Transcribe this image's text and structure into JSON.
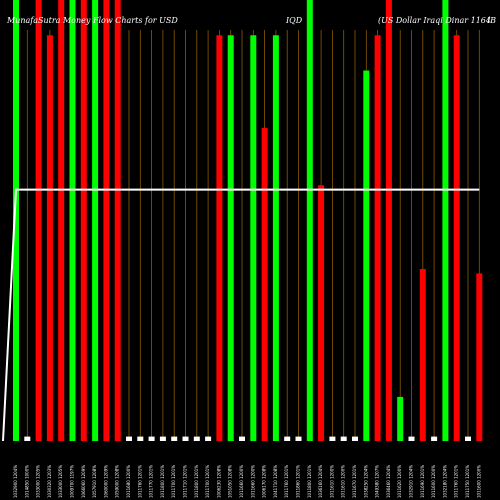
{
  "chart_data": {
    "type": "bar",
    "title_parts": [
      "MunafaSutra Money Flow Charts for USD",
      "IQD",
      "(US Dollar Iraqi Dinar 1164",
      "IB"
    ],
    "ylim": [
      0,
      100
    ],
    "grid": "vertical lines",
    "colors": {
      "background": "#000000",
      "up": "#00ff00",
      "down": "#ff0000",
      "grid": "#8b5a00",
      "line": "#ffffff",
      "neutral": "#ffffff"
    },
    "categories": [
      "1032900 1204%",
      "1014850 1000%",
      "1033000 1205%",
      "1030320 1203%",
      "1033000 1205%",
      "1009700 1197%",
      "1066060 1209%",
      "1057910 1208%",
      "1060000 1209%",
      "1059000 1208%",
      "1011680 1200%",
      "1011760 1201%",
      "1011770 1201%",
      "1011800 1201%",
      "1011700 1201%",
      "1011710 1201%",
      "1011800 1201%",
      "1011700 1201%",
      "1006230 1208%",
      "1051050 1208%",
      "1011660 1200%",
      "1011660 1200%",
      "1006170 1208%",
      "1041710 1208%",
      "1011760 1201%",
      "1011860 1201%",
      "1011800 1201%",
      "1036160 1204%",
      "1011610 1200%",
      "1011610 1200%",
      "1011670 1201%",
      "1038250 1204%",
      "1049380 1207%",
      "1036460 1204%",
      "1011620 1200%",
      "1032910 1204%",
      "1011690 1201%",
      "1011600 1200%",
      "1032180 1204%",
      "1011760 1201%",
      "1011750 1201%",
      "1011600 1200%"
    ],
    "series": [
      {
        "values": [
          100,
          1,
          100,
          92,
          100,
          100,
          100,
          100,
          100,
          100,
          1,
          1,
          1,
          1,
          1,
          1,
          1,
          1,
          92,
          92,
          1,
          92,
          71,
          92,
          1,
          1,
          100,
          58,
          1,
          1,
          1,
          84,
          92,
          100,
          10,
          1,
          39,
          1,
          100,
          92,
          1,
          38
        ],
        "colors": [
          "up",
          "neutral",
          "down",
          "down",
          "down",
          "up",
          "down",
          "up",
          "down",
          "down",
          "neutral",
          "neutral",
          "neutral",
          "neutral",
          "neutral",
          "neutral",
          "neutral",
          "neutral",
          "down",
          "up",
          "neutral",
          "up",
          "down",
          "up",
          "neutral",
          "neutral",
          "up",
          "down",
          "neutral",
          "neutral",
          "neutral",
          "up",
          "down",
          "down",
          "up",
          "neutral",
          "down",
          "neutral",
          "up",
          "down",
          "neutral",
          "down"
        ]
      }
    ],
    "line_values": [
      57,
      57,
      57,
      57,
      57,
      57,
      57,
      57,
      57,
      57,
      57,
      57,
      57,
      57,
      57,
      57,
      57,
      57,
      57,
      57,
      57,
      57,
      57,
      57,
      57,
      57,
      57,
      57,
      57,
      57,
      57,
      57,
      57,
      57,
      57,
      57,
      57,
      57,
      57,
      57,
      57,
      57
    ]
  }
}
